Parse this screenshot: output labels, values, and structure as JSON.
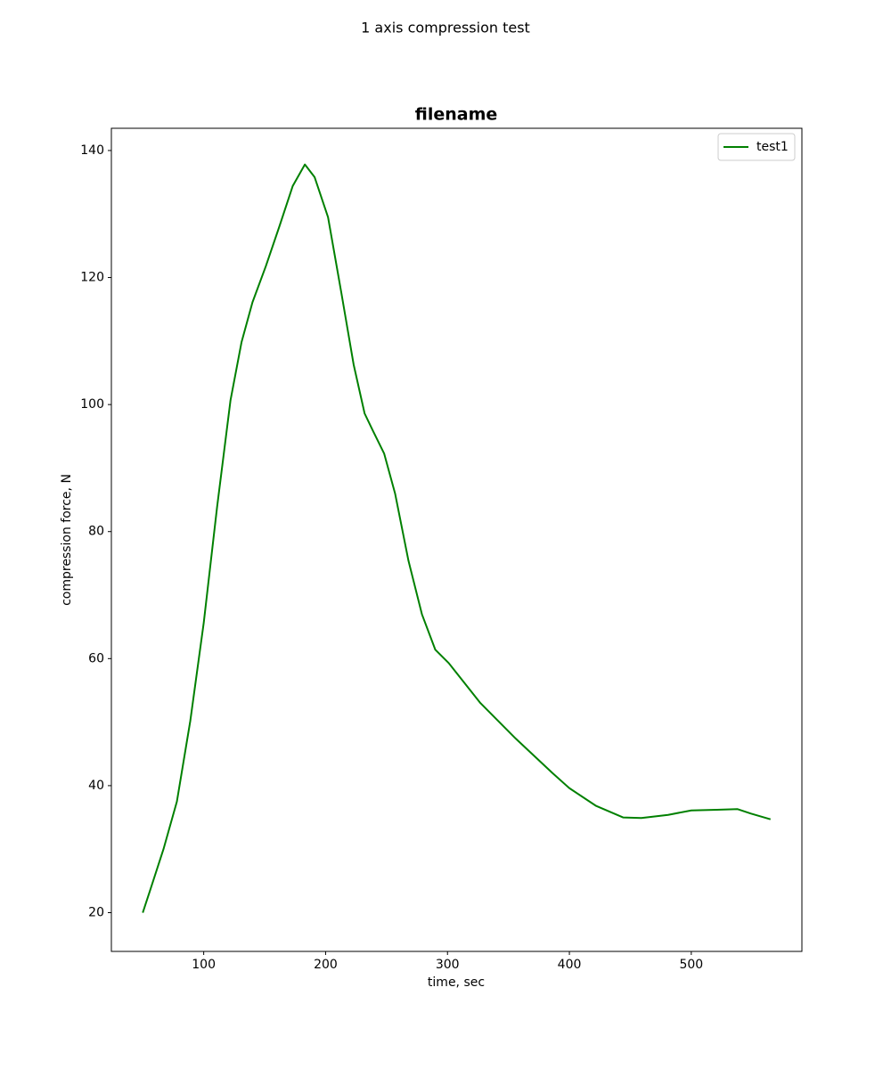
{
  "chart_data": {
    "type": "line",
    "suptitle": "1 axis compression test",
    "title": "filename",
    "xlabel": "time, sec",
    "ylabel": "compression force, N",
    "x": [
      50,
      56,
      67,
      78,
      89,
      100,
      111,
      122,
      131,
      140,
      151,
      162,
      173,
      183,
      191,
      202,
      213,
      223,
      232,
      239,
      248,
      257,
      268,
      279,
      290,
      301,
      327,
      356,
      386,
      400,
      422,
      444,
      459,
      481,
      500,
      521,
      538,
      549,
      565
    ],
    "series": [
      {
        "name": "test1",
        "color": "green",
        "values": [
          20,
          23.5,
          30,
          37.5,
          50.2,
          65.6,
          83.9,
          100.7,
          109.8,
          116.1,
          121.8,
          128,
          134.4,
          137.8,
          135.8,
          129.5,
          117.5,
          106.3,
          98.6,
          95.8,
          92.3,
          86,
          75.4,
          67,
          61.4,
          59.3,
          53,
          47.4,
          42,
          39.6,
          36.8,
          35,
          34.9,
          35.4,
          36.1,
          36.2,
          36.3,
          35.6,
          34.7
        ]
      }
    ],
    "xlim": [
      24.25,
      590.75
    ],
    "ylim": [
      13.9,
      143.5
    ],
    "xticks": [
      100,
      200,
      300,
      400,
      500
    ],
    "yticks": [
      20,
      40,
      60,
      80,
      100,
      120,
      140
    ],
    "legend": "upper right"
  }
}
